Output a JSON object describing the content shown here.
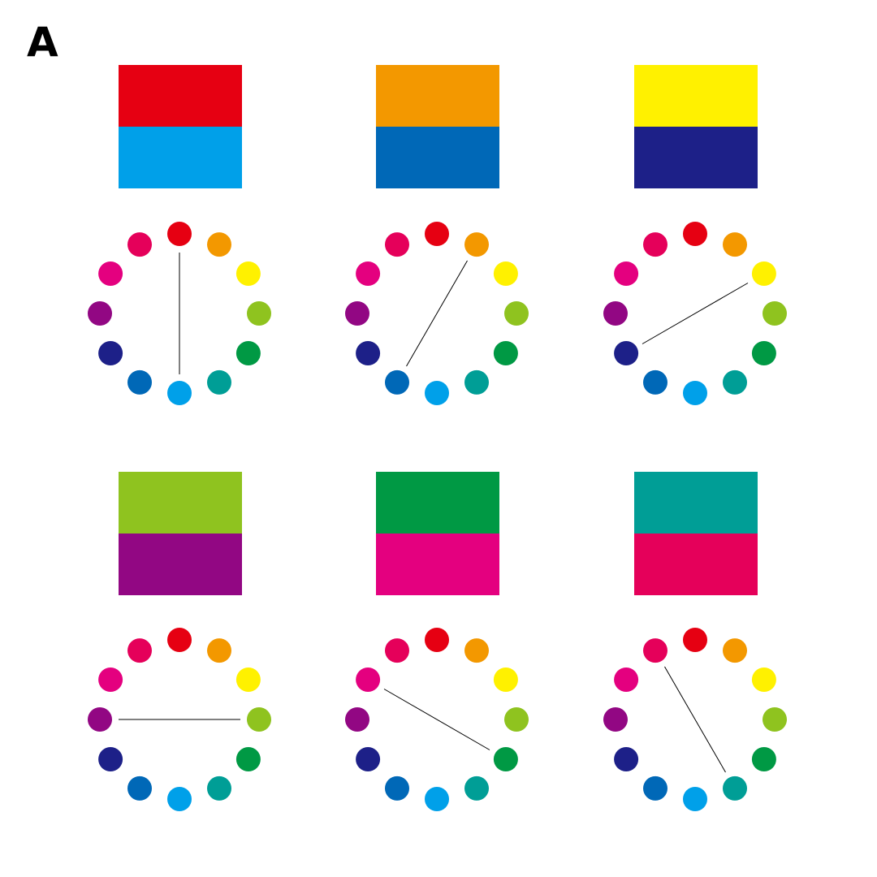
{
  "panel_label": "A",
  "wheel_colors": [
    {
      "name": "red",
      "hex": "#E60012"
    },
    {
      "name": "orange",
      "hex": "#F39800"
    },
    {
      "name": "yellow",
      "hex": "#FFF100"
    },
    {
      "name": "yellow-green",
      "hex": "#8FC31F"
    },
    {
      "name": "green",
      "hex": "#009944"
    },
    {
      "name": "blue-green",
      "hex": "#009E96"
    },
    {
      "name": "sky-blue",
      "hex": "#00A0E9"
    },
    {
      "name": "blue",
      "hex": "#0068B7"
    },
    {
      "name": "indigo",
      "hex": "#1D2088"
    },
    {
      "name": "purple",
      "hex": "#920783"
    },
    {
      "name": "magenta",
      "hex": "#E4007F"
    },
    {
      "name": "crimson",
      "hex": "#E5005A"
    }
  ],
  "pairs": [
    {
      "top": "#E60012",
      "bottom": "#00A0E9",
      "from": 0,
      "to": 6
    },
    {
      "top": "#F39800",
      "bottom": "#0068B7",
      "from": 1,
      "to": 7
    },
    {
      "top": "#FFF100",
      "bottom": "#1D2088",
      "from": 2,
      "to": 8
    },
    {
      "top": "#8FC31F",
      "bottom": "#920783",
      "from": 3,
      "to": 9
    },
    {
      "top": "#009944",
      "bottom": "#E4007F",
      "from": 4,
      "to": 10
    },
    {
      "top": "#009E96",
      "bottom": "#E5005A",
      "from": 5,
      "to": 11
    }
  ]
}
